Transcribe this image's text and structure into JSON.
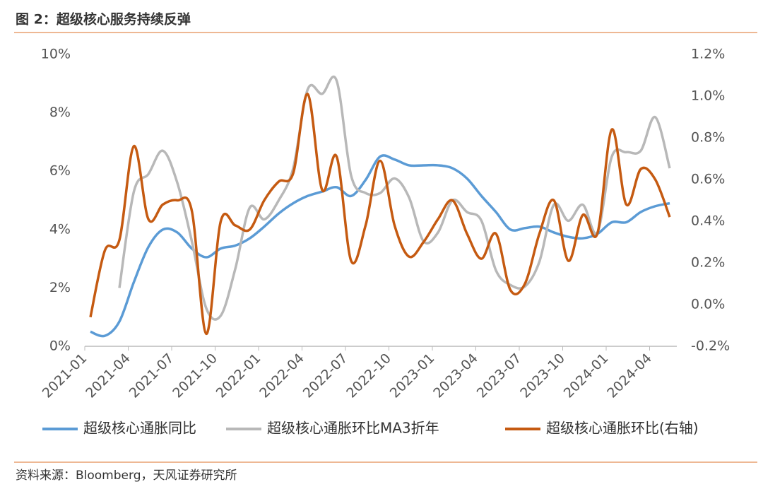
{
  "chart_data": {
    "type": "line",
    "title": "图 2：超级核心服务持续反弹",
    "source": "资料来源：Bloomberg，天风证券研究所",
    "categories": [
      "2021-01",
      null,
      null,
      "2021-04",
      null,
      null,
      "2021-07",
      null,
      null,
      "2021-10",
      null,
      null,
      "2022-01",
      null,
      null,
      "2022-04",
      null,
      null,
      "2022-07",
      null,
      null,
      "2022-10",
      null,
      null,
      "2023-01",
      null,
      null,
      "2023-04",
      null,
      null,
      "2023-07",
      null,
      null,
      "2023-10",
      null,
      null,
      "2024-01",
      null,
      null,
      "2024-04",
      null
    ],
    "series": [
      {
        "name": "超级核心通胀同比",
        "color": "#5b9bd5",
        "values": [
          0.5,
          0.36,
          0.85,
          2.2,
          3.4,
          4.0,
          3.9,
          3.35,
          3.05,
          3.35,
          3.45,
          3.7,
          4.1,
          4.55,
          4.9,
          5.15,
          5.3,
          5.45,
          5.15,
          5.7,
          6.5,
          6.4,
          6.2,
          6.2,
          6.2,
          6.1,
          5.75,
          5.15,
          4.6,
          4.0,
          4.05,
          4.1,
          3.9,
          3.75,
          3.7,
          3.85,
          4.25,
          4.25,
          4.6,
          4.8,
          4.9
        ]
      },
      {
        "name": "超级核心通胀环比MA3折年",
        "color": "#b8b8b8",
        "values": [
          null,
          null,
          2.0,
          5.3,
          5.9,
          6.7,
          5.6,
          3.6,
          1.3,
          1.05,
          2.65,
          4.75,
          4.35,
          5.0,
          6.1,
          8.8,
          8.65,
          9.1,
          5.85,
          5.25,
          5.25,
          5.75,
          5.1,
          3.6,
          3.9,
          5.0,
          4.6,
          4.3,
          2.6,
          2.1,
          2.05,
          2.9,
          4.85,
          4.3,
          4.85,
          3.9,
          6.5,
          6.65,
          6.7,
          7.85,
          6.1
        ]
      },
      {
        "name": "超级核心通胀环比(右轴)",
        "color": "#c55a11",
        "axis": "y2",
        "values": [
          -0.06,
          0.26,
          0.31,
          0.76,
          0.41,
          0.48,
          0.5,
          0.45,
          -0.14,
          0.4,
          0.38,
          0.36,
          0.5,
          0.59,
          0.63,
          1.01,
          0.55,
          0.71,
          0.21,
          0.38,
          0.69,
          0.38,
          0.23,
          0.3,
          0.41,
          0.5,
          0.34,
          0.22,
          0.34,
          0.07,
          0.1,
          0.34,
          0.5,
          0.21,
          0.43,
          0.34,
          0.84,
          0.48,
          0.65,
          0.6,
          0.42
        ]
      }
    ],
    "ylim": [
      0,
      10
    ],
    "yticks": [
      {
        "value": 0,
        "label": "0%"
      },
      {
        "value": 2,
        "label": "2%"
      },
      {
        "value": 4,
        "label": "4%"
      },
      {
        "value": 6,
        "label": "6%"
      },
      {
        "value": 8,
        "label": "8%"
      },
      {
        "value": 10,
        "label": "10%"
      }
    ],
    "y2lim": [
      -0.2,
      1.2
    ],
    "y2ticks": [
      {
        "value": -0.2,
        "label": "-0.2%"
      },
      {
        "value": 0,
        "label": "0.0%"
      },
      {
        "value": 0.2,
        "label": "0.2%"
      },
      {
        "value": 0.4,
        "label": "0.4%"
      },
      {
        "value": 0.6,
        "label": "0.6%"
      },
      {
        "value": 0.8,
        "label": "0.8%"
      },
      {
        "value": 1.0,
        "label": "1.0%"
      },
      {
        "value": 1.2,
        "label": "1.2%"
      }
    ],
    "legend": "bottom"
  }
}
